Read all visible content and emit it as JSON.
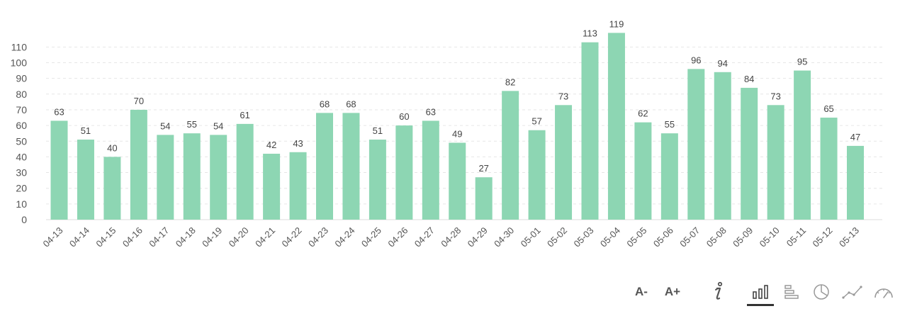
{
  "chart_data": {
    "type": "bar",
    "categories": [
      "04-13",
      "04-14",
      "04-15",
      "04-16",
      "04-17",
      "04-18",
      "04-19",
      "04-20",
      "04-21",
      "04-22",
      "04-23",
      "04-24",
      "04-25",
      "04-26",
      "04-27",
      "04-28",
      "04-29",
      "04-30",
      "05-01",
      "05-02",
      "05-03",
      "05-04",
      "05-05",
      "05-06",
      "05-07",
      "05-08",
      "05-09",
      "05-10",
      "05-11",
      "05-12",
      "05-13"
    ],
    "values": [
      63,
      51,
      40,
      70,
      54,
      55,
      54,
      61,
      42,
      43,
      68,
      68,
      51,
      60,
      63,
      49,
      27,
      82,
      57,
      73,
      113,
      119,
      62,
      55,
      96,
      94,
      84,
      73,
      95,
      65,
      47
    ],
    "yticks": [
      0,
      10,
      20,
      30,
      40,
      50,
      60,
      70,
      80,
      90,
      100,
      110
    ],
    "ylim": [
      0,
      120
    ],
    "grid": true,
    "data_labels": true,
    "bar_color": "#8dd6b3",
    "title": "",
    "xlabel": "",
    "ylabel": ""
  },
  "toolbar": {
    "font_decrease_label": "A-",
    "font_increase_label": "A+",
    "icons": [
      "info-icon",
      "vertical-bar-chart-icon",
      "horizontal-bar-chart-icon",
      "pie-chart-icon",
      "line-chart-icon",
      "gauge-icon"
    ],
    "active": "vertical-bar-chart-icon"
  }
}
